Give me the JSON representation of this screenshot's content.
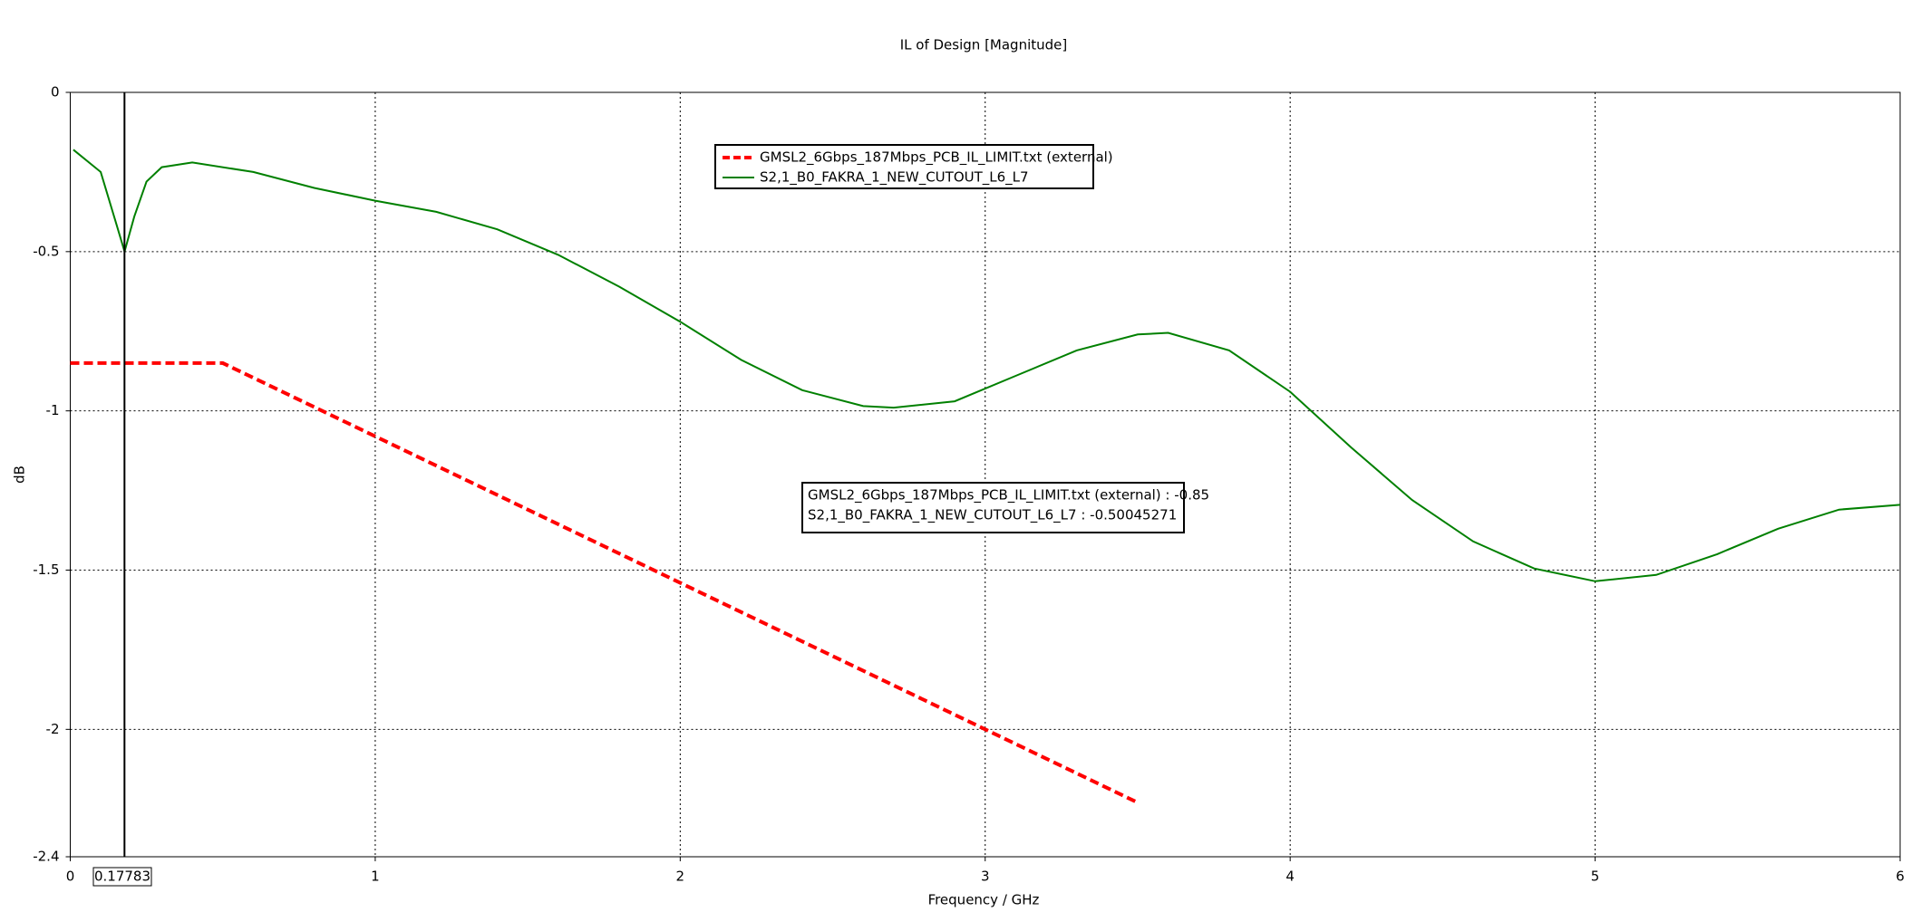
{
  "chart_data": {
    "type": "line",
    "title": "IL of Design [Magnitude]",
    "xlabel": "Frequency / GHz",
    "ylabel": "dB",
    "xlim": [
      0,
      6
    ],
    "xticks": [
      0,
      1,
      2,
      3,
      4,
      5,
      6
    ],
    "ylim": [
      -2.4,
      0
    ],
    "yticks": [
      0,
      -0.5,
      -1,
      -1.5,
      -2,
      -2.4
    ],
    "grid": true,
    "cursor_x": 0.17783,
    "cursor_readout": [
      "GMSL2_6Gbps_187Mbps_PCB_IL_LIMIT.txt (external) : -0.85",
      "S2,1_B0_FAKRA_1_NEW_CUTOUT_L6_L7 : -0.50045271"
    ],
    "series": [
      {
        "name": "GMSL2_6Gbps_187Mbps_PCB_IL_LIMIT.txt (external)",
        "color": "#ff0000",
        "linestyle": "dashed",
        "x": [
          0,
          0.5,
          3.5
        ],
        "values": [
          -0.85,
          -0.85,
          -2.23
        ]
      },
      {
        "name": "S2,1_B0_FAKRA_1_NEW_CUTOUT_L6_L7",
        "color": "#008000",
        "linestyle": "solid",
        "x": [
          0.01,
          0.1,
          0.15,
          0.178,
          0.21,
          0.25,
          0.3,
          0.4,
          0.6,
          0.8,
          1.0,
          1.2,
          1.4,
          1.6,
          1.8,
          2.0,
          2.2,
          2.4,
          2.6,
          2.7,
          2.9,
          3.1,
          3.3,
          3.5,
          3.6,
          3.8,
          4.0,
          4.2,
          4.4,
          4.6,
          4.8,
          5.0,
          5.2,
          5.4,
          5.6,
          5.8,
          6.0
        ],
        "values": [
          -0.18,
          -0.25,
          -0.41,
          -0.5,
          -0.39,
          -0.28,
          -0.235,
          -0.22,
          -0.25,
          -0.3,
          -0.34,
          -0.375,
          -0.43,
          -0.51,
          -0.61,
          -0.72,
          -0.84,
          -0.935,
          -0.985,
          -0.99,
          -0.97,
          -0.89,
          -0.81,
          -0.76,
          -0.755,
          -0.81,
          -0.94,
          -1.115,
          -1.28,
          -1.41,
          -1.495,
          -1.535,
          -1.515,
          -1.45,
          -1.37,
          -1.31,
          -1.295
        ]
      }
    ]
  }
}
